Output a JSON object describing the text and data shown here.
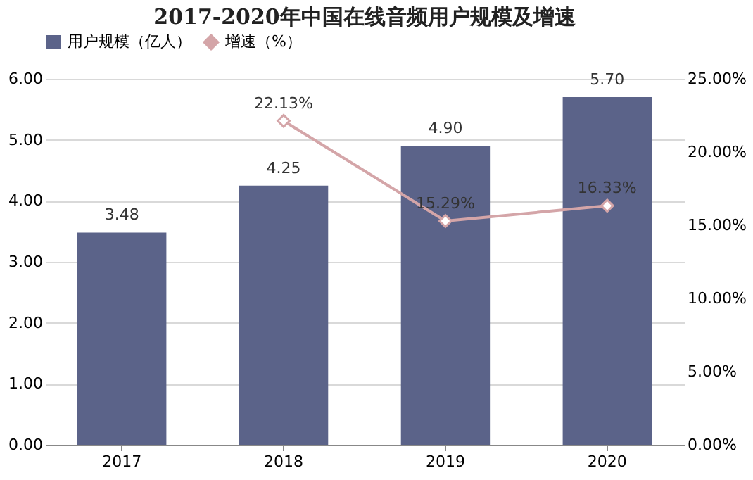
{
  "chart_data": {
    "type": "bar",
    "title": "2017-2020年中国在线音频用户规模及增速",
    "categories": [
      "2017",
      "2018",
      "2019",
      "2020"
    ],
    "series": [
      {
        "name": "用户规模（亿人）",
        "color": "#5b6389",
        "values": [
          3.48,
          4.25,
          4.9,
          5.7
        ],
        "value_labels": [
          "3.48",
          "4.25",
          "4.90",
          "5.70"
        ]
      },
      {
        "name": "增速（%）",
        "type": "line",
        "axis": "y2",
        "color": "#d4a5a8",
        "marker": "diamond",
        "values": [
          null,
          22.13,
          15.29,
          16.33
        ],
        "value_labels": [
          null,
          "22.13%",
          "15.29%",
          "16.33%"
        ]
      }
    ],
    "ylim": [
      0,
      6
    ],
    "yticks": [
      {
        "value": 0,
        "label": "0.00"
      },
      {
        "value": 1,
        "label": "1.00"
      },
      {
        "value": 2,
        "label": "2.00"
      },
      {
        "value": 3,
        "label": "3.00"
      },
      {
        "value": 4,
        "label": "4.00"
      },
      {
        "value": 5,
        "label": "5.00"
      },
      {
        "value": 6,
        "label": "6.00"
      }
    ],
    "y2lim": [
      0,
      25
    ],
    "y2ticks": [
      {
        "value": 0,
        "label": "0.00%"
      },
      {
        "value": 5,
        "label": "5.00%"
      },
      {
        "value": 10,
        "label": "10.00%"
      },
      {
        "value": 15,
        "label": "15.00%"
      },
      {
        "value": 20,
        "label": "20.00%"
      },
      {
        "value": 25,
        "label": "25.00%"
      }
    ],
    "grid": "y",
    "legend": "top"
  }
}
